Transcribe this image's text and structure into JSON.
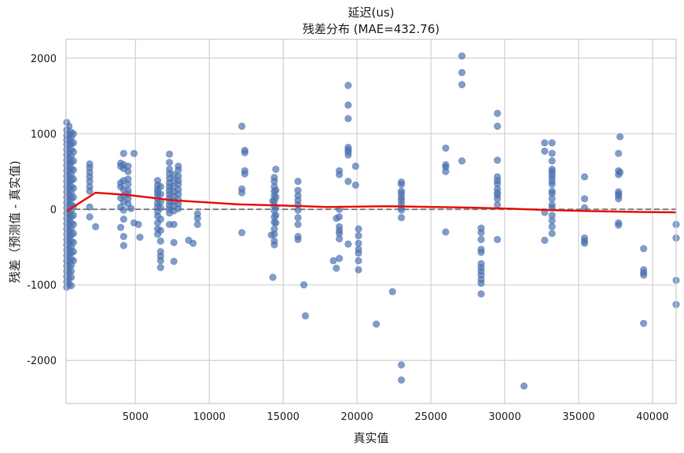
{
  "chart_data": {
    "type": "scatter",
    "title": "延迟(us)",
    "subtitle": "残差分布 (MAE=432.76)",
    "xlabel": "真实值",
    "ylabel": "残差（预测值 - 真实值)",
    "xlim": [
      300,
      41600
    ],
    "ylim": [
      -2570,
      2250
    ],
    "xticks": [
      5000,
      10000,
      15000,
      20000,
      25000,
      30000,
      35000,
      40000
    ],
    "yticks": [
      -2000,
      -1000,
      0,
      1000,
      2000
    ],
    "ytick_labels": [
      "-2000",
      "-1000",
      "0",
      "1000",
      "2000"
    ],
    "grid": true,
    "reference_line": {
      "y": 0,
      "style": "dashed",
      "color": "#808080"
    },
    "colors": {
      "points": "#4c72b0",
      "trend": "#e8130c",
      "grid": "#d0d0d0",
      "frame": "#cccccc"
    },
    "trend_line": {
      "x": [
        300,
        2300,
        4500,
        7500,
        12000,
        15000,
        18000,
        22000,
        27000,
        30000,
        33000,
        36000,
        39000,
        41600
      ],
      "y": [
        -30,
        220,
        190,
        120,
        65,
        50,
        30,
        40,
        25,
        10,
        -10,
        -25,
        -35,
        -40
      ]
    },
    "points": [
      [
        350,
        1150
      ],
      [
        350,
        1050
      ],
      [
        350,
        980
      ],
      [
        350,
        920
      ],
      [
        350,
        860
      ],
      [
        350,
        790
      ],
      [
        350,
        720
      ],
      [
        350,
        650
      ],
      [
        350,
        580
      ],
      [
        350,
        510
      ],
      [
        350,
        440
      ],
      [
        350,
        370
      ],
      [
        350,
        300
      ],
      [
        350,
        230
      ],
      [
        350,
        160
      ],
      [
        350,
        90
      ],
      [
        350,
        20
      ],
      [
        350,
        -50
      ],
      [
        350,
        -120
      ],
      [
        350,
        -190
      ],
      [
        350,
        -260
      ],
      [
        350,
        -330
      ],
      [
        350,
        -400
      ],
      [
        350,
        -470
      ],
      [
        350,
        -540
      ],
      [
        350,
        -610
      ],
      [
        350,
        -680
      ],
      [
        350,
        -750
      ],
      [
        350,
        -820
      ],
      [
        350,
        -890
      ],
      [
        350,
        -960
      ],
      [
        350,
        -1030
      ],
      [
        500,
        1100
      ],
      [
        500,
        1000
      ],
      [
        500,
        930
      ],
      [
        500,
        850
      ],
      [
        500,
        760
      ],
      [
        500,
        680
      ],
      [
        500,
        600
      ],
      [
        500,
        520
      ],
      [
        500,
        440
      ],
      [
        500,
        360
      ],
      [
        500,
        280
      ],
      [
        500,
        200
      ],
      [
        500,
        120
      ],
      [
        500,
        40
      ],
      [
        500,
        -40
      ],
      [
        500,
        -120
      ],
      [
        500,
        -200
      ],
      [
        500,
        -280
      ],
      [
        500,
        -360
      ],
      [
        500,
        -440
      ],
      [
        500,
        -520
      ],
      [
        500,
        -600
      ],
      [
        500,
        -680
      ],
      [
        500,
        -760
      ],
      [
        500,
        -840
      ],
      [
        500,
        -920
      ],
      [
        500,
        -990
      ],
      [
        650,
        1020
      ],
      [
        650,
        950
      ],
      [
        650,
        870
      ],
      [
        650,
        790
      ],
      [
        650,
        700
      ],
      [
        650,
        620
      ],
      [
        650,
        540
      ],
      [
        650,
        460
      ],
      [
        650,
        380
      ],
      [
        650,
        300
      ],
      [
        650,
        220
      ],
      [
        650,
        140
      ],
      [
        650,
        60
      ],
      [
        650,
        -20
      ],
      [
        650,
        -100
      ],
      [
        650,
        -180
      ],
      [
        650,
        -260
      ],
      [
        650,
        -340
      ],
      [
        650,
        -420
      ],
      [
        650,
        -500
      ],
      [
        650,
        -580
      ],
      [
        650,
        -660
      ],
      [
        650,
        -740
      ],
      [
        650,
        -820
      ],
      [
        650,
        -900
      ],
      [
        650,
        -1010
      ],
      [
        800,
        1000
      ],
      [
        800,
        880
      ],
      [
        800,
        760
      ],
      [
        800,
        640
      ],
      [
        800,
        520
      ],
      [
        800,
        400
      ],
      [
        800,
        280
      ],
      [
        800,
        160
      ],
      [
        800,
        40
      ],
      [
        800,
        -80
      ],
      [
        800,
        -200
      ],
      [
        800,
        -320
      ],
      [
        800,
        -440
      ],
      [
        800,
        -560
      ],
      [
        800,
        -680
      ],
      [
        1900,
        600
      ],
      [
        1900,
        550
      ],
      [
        1900,
        490
      ],
      [
        1900,
        430
      ],
      [
        1900,
        370
      ],
      [
        1900,
        300
      ],
      [
        1900,
        240
      ],
      [
        1900,
        30
      ],
      [
        1900,
        -100
      ],
      [
        2300,
        -230
      ],
      [
        4000,
        610
      ],
      [
        4000,
        570
      ],
      [
        4000,
        350
      ],
      [
        4000,
        300
      ],
      [
        4000,
        150
      ],
      [
        4000,
        30
      ],
      [
        4000,
        -240
      ],
      [
        4200,
        740
      ],
      [
        4200,
        590
      ],
      [
        4200,
        540
      ],
      [
        4200,
        380
      ],
      [
        4200,
        260
      ],
      [
        4200,
        180
      ],
      [
        4200,
        100
      ],
      [
        4200,
        -10
      ],
      [
        4200,
        -130
      ],
      [
        4200,
        -360
      ],
      [
        4200,
        -480
      ],
      [
        4500,
        570
      ],
      [
        4500,
        500
      ],
      [
        4500,
        400
      ],
      [
        4500,
        330
      ],
      [
        4500,
        250
      ],
      [
        4500,
        200
      ],
      [
        4500,
        140
      ],
      [
        4500,
        70
      ],
      [
        4700,
        10
      ],
      [
        4900,
        740
      ],
      [
        4900,
        -180
      ],
      [
        5200,
        -200
      ],
      [
        5300,
        -370
      ],
      [
        6500,
        380
      ],
      [
        6500,
        320
      ],
      [
        6500,
        270
      ],
      [
        6500,
        230
      ],
      [
        6500,
        190
      ],
      [
        6500,
        140
      ],
      [
        6500,
        80
      ],
      [
        6500,
        30
      ],
      [
        6500,
        -30
      ],
      [
        6500,
        -90
      ],
      [
        6500,
        -180
      ],
      [
        6500,
        -260
      ],
      [
        6500,
        -330
      ],
      [
        6700,
        300
      ],
      [
        6700,
        200
      ],
      [
        6700,
        100
      ],
      [
        6700,
        20
      ],
      [
        6700,
        -130
      ],
      [
        6700,
        -280
      ],
      [
        6700,
        -420
      ],
      [
        6700,
        -560
      ],
      [
        6700,
        -620
      ],
      [
        6700,
        -680
      ],
      [
        6700,
        -770
      ],
      [
        7300,
        730
      ],
      [
        7300,
        620
      ],
      [
        7300,
        530
      ],
      [
        7300,
        470
      ],
      [
        7300,
        410
      ],
      [
        7300,
        350
      ],
      [
        7300,
        300
      ],
      [
        7300,
        250
      ],
      [
        7300,
        200
      ],
      [
        7300,
        150
      ],
      [
        7300,
        100
      ],
      [
        7300,
        50
      ],
      [
        7300,
        0
      ],
      [
        7300,
        -50
      ],
      [
        7300,
        -200
      ],
      [
        7600,
        460
      ],
      [
        7600,
        380
      ],
      [
        7600,
        300
      ],
      [
        7600,
        230
      ],
      [
        7600,
        170
      ],
      [
        7600,
        110
      ],
      [
        7600,
        50
      ],
      [
        7600,
        -20
      ],
      [
        7600,
        -200
      ],
      [
        7600,
        -440
      ],
      [
        7600,
        -690
      ],
      [
        7900,
        570
      ],
      [
        7900,
        520
      ],
      [
        7900,
        440
      ],
      [
        7900,
        380
      ],
      [
        7900,
        330
      ],
      [
        7900,
        260
      ],
      [
        7900,
        200
      ],
      [
        7900,
        130
      ],
      [
        7900,
        70
      ],
      [
        7900,
        10
      ],
      [
        8600,
        -410
      ],
      [
        8900,
        -450
      ],
      [
        9200,
        -60
      ],
      [
        9200,
        -120
      ],
      [
        9200,
        -200
      ],
      [
        12200,
        1100
      ],
      [
        12200,
        270
      ],
      [
        12200,
        220
      ],
      [
        12200,
        -310
      ],
      [
        12400,
        780
      ],
      [
        12400,
        750
      ],
      [
        12400,
        510
      ],
      [
        12400,
        470
      ],
      [
        14200,
        -340
      ],
      [
        14300,
        110
      ],
      [
        14300,
        -900
      ],
      [
        14400,
        420
      ],
      [
        14400,
        370
      ],
      [
        14400,
        300
      ],
      [
        14400,
        240
      ],
      [
        14400,
        180
      ],
      [
        14400,
        110
      ],
      [
        14400,
        40
      ],
      [
        14400,
        -20
      ],
      [
        14400,
        -100
      ],
      [
        14400,
        -170
      ],
      [
        14400,
        -260
      ],
      [
        14400,
        -330
      ],
      [
        14400,
        -420
      ],
      [
        14400,
        -470
      ],
      [
        14500,
        530
      ],
      [
        14500,
        250
      ],
      [
        14500,
        160
      ],
      [
        14500,
        30
      ],
      [
        14500,
        -80
      ],
      [
        14500,
        -180
      ],
      [
        16000,
        370
      ],
      [
        16000,
        250
      ],
      [
        16000,
        180
      ],
      [
        16000,
        120
      ],
      [
        16000,
        60
      ],
      [
        16000,
        -10
      ],
      [
        16000,
        -110
      ],
      [
        16000,
        -200
      ],
      [
        16000,
        -360
      ],
      [
        16000,
        -400
      ],
      [
        16400,
        -1000
      ],
      [
        16500,
        -1410
      ],
      [
        18400,
        -680
      ],
      [
        18600,
        -120
      ],
      [
        18600,
        -780
      ],
      [
        18800,
        510
      ],
      [
        18800,
        460
      ],
      [
        18800,
        0
      ],
      [
        18800,
        -100
      ],
      [
        18800,
        -230
      ],
      [
        18800,
        -280
      ],
      [
        18800,
        -320
      ],
      [
        18800,
        -390
      ],
      [
        18800,
        -650
      ],
      [
        19400,
        1640
      ],
      [
        19400,
        1380
      ],
      [
        19400,
        1200
      ],
      [
        19400,
        820
      ],
      [
        19400,
        790
      ],
      [
        19400,
        760
      ],
      [
        19400,
        720
      ],
      [
        19400,
        370
      ],
      [
        19400,
        -460
      ],
      [
        19900,
        570
      ],
      [
        19900,
        320
      ],
      [
        20100,
        -260
      ],
      [
        20100,
        -350
      ],
      [
        20100,
        -450
      ],
      [
        20100,
        -530
      ],
      [
        20100,
        -580
      ],
      [
        20100,
        -680
      ],
      [
        20100,
        -800
      ],
      [
        21300,
        -1520
      ],
      [
        22400,
        -1090
      ],
      [
        23000,
        360
      ],
      [
        23000,
        330
      ],
      [
        23000,
        240
      ],
      [
        23000,
        210
      ],
      [
        23000,
        160
      ],
      [
        23000,
        120
      ],
      [
        23000,
        70
      ],
      [
        23000,
        20
      ],
      [
        23000,
        -10
      ],
      [
        23000,
        -110
      ],
      [
        23000,
        -2060
      ],
      [
        23000,
        -2260
      ],
      [
        26000,
        810
      ],
      [
        26000,
        590
      ],
      [
        26000,
        560
      ],
      [
        26000,
        500
      ],
      [
        26000,
        -300
      ],
      [
        27100,
        2030
      ],
      [
        27100,
        1810
      ],
      [
        27100,
        1650
      ],
      [
        27100,
        640
      ],
      [
        28400,
        -250
      ],
      [
        28400,
        -310
      ],
      [
        28400,
        -400
      ],
      [
        28400,
        -530
      ],
      [
        28400,
        -570
      ],
      [
        28400,
        -720
      ],
      [
        28400,
        -770
      ],
      [
        28400,
        -820
      ],
      [
        28400,
        -870
      ],
      [
        28400,
        -930
      ],
      [
        28400,
        -980
      ],
      [
        28400,
        -1120
      ],
      [
        29500,
        1270
      ],
      [
        29500,
        1100
      ],
      [
        29500,
        650
      ],
      [
        29500,
        430
      ],
      [
        29500,
        380
      ],
      [
        29500,
        340
      ],
      [
        29500,
        270
      ],
      [
        29500,
        220
      ],
      [
        29500,
        190
      ],
      [
        29500,
        140
      ],
      [
        29500,
        60
      ],
      [
        29500,
        -400
      ],
      [
        31300,
        -2340
      ],
      [
        32700,
        880
      ],
      [
        32700,
        770
      ],
      [
        32700,
        -40
      ],
      [
        32700,
        -410
      ],
      [
        33200,
        880
      ],
      [
        33200,
        740
      ],
      [
        33200,
        640
      ],
      [
        33200,
        530
      ],
      [
        33200,
        500
      ],
      [
        33200,
        460
      ],
      [
        33200,
        420
      ],
      [
        33200,
        370
      ],
      [
        33200,
        330
      ],
      [
        33200,
        240
      ],
      [
        33200,
        210
      ],
      [
        33200,
        140
      ],
      [
        33200,
        60
      ],
      [
        33200,
        20
      ],
      [
        33200,
        -80
      ],
      [
        33200,
        -150
      ],
      [
        33200,
        -230
      ],
      [
        33200,
        -320
      ],
      [
        35400,
        430
      ],
      [
        35400,
        140
      ],
      [
        35400,
        20
      ],
      [
        35400,
        -380
      ],
      [
        35400,
        -420
      ],
      [
        35400,
        -450
      ],
      [
        37700,
        740
      ],
      [
        37700,
        510
      ],
      [
        37700,
        460
      ],
      [
        37700,
        230
      ],
      [
        37700,
        200
      ],
      [
        37700,
        180
      ],
      [
        37700,
        140
      ],
      [
        37700,
        -180
      ],
      [
        37700,
        -210
      ],
      [
        37800,
        960
      ],
      [
        37800,
        490
      ],
      [
        39400,
        -520
      ],
      [
        39400,
        -800
      ],
      [
        39400,
        -840
      ],
      [
        39400,
        -870
      ],
      [
        39400,
        -1510
      ],
      [
        41600,
        -200
      ],
      [
        41600,
        -380
      ],
      [
        41600,
        -940
      ],
      [
        41600,
        -1260
      ]
    ]
  }
}
